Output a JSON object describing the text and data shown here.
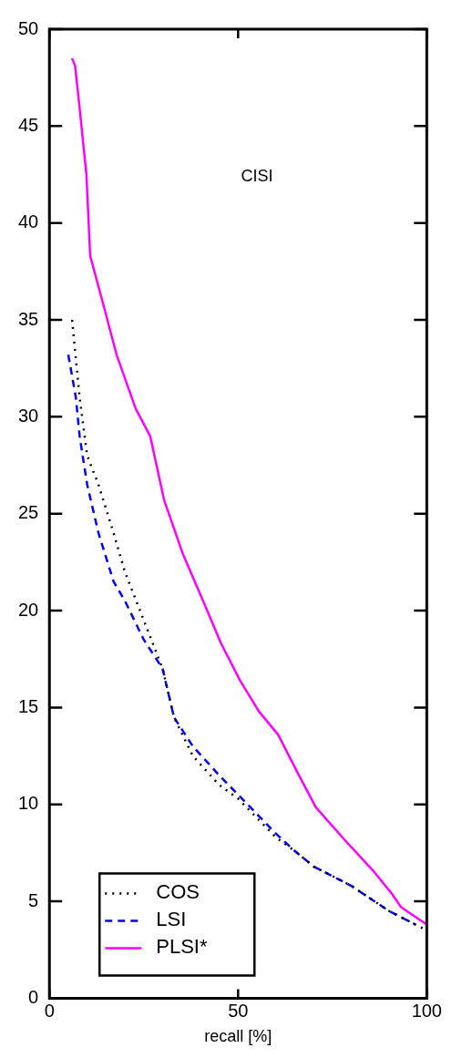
{
  "chart_data": {
    "type": "line",
    "title": "CISI",
    "xlabel": "recall [%]",
    "xlim": [
      0,
      100
    ],
    "xticks": [
      0,
      50,
      100
    ],
    "ylim": [
      0,
      50
    ],
    "yticks": [
      0,
      5,
      10,
      15,
      20,
      25,
      30,
      35,
      40,
      45,
      50
    ],
    "grid": false,
    "legend": "bottom left",
    "marker": "none",
    "series": [
      {
        "name": "COS",
        "color": "#000000",
        "line_style": "dotted",
        "x": [
          6,
          8,
          10,
          13,
          17,
          20,
          25,
          30,
          33,
          38,
          45,
          50,
          55,
          60,
          65,
          70,
          80,
          90,
          100
        ],
        "values": [
          35,
          31,
          28,
          26.5,
          24,
          22,
          19.5,
          17,
          14.5,
          12.5,
          11,
          10.3,
          9.3,
          8.3,
          7.6,
          6.8,
          5.8,
          4.5,
          3.5
        ]
      },
      {
        "name": "LSI",
        "color": "#0000ff",
        "line_style": "dashed",
        "x": [
          5,
          7,
          8,
          10,
          13,
          17,
          20,
          25,
          30,
          33,
          38,
          45,
          50,
          55,
          60,
          65,
          70,
          80,
          90,
          97
        ],
        "values": [
          33.2,
          31,
          29,
          26.5,
          24,
          21.5,
          20.5,
          18.5,
          17,
          14.5,
          13,
          11.5,
          10.5,
          9.5,
          8.5,
          7.6,
          6.8,
          5.8,
          4.5,
          3.8
        ]
      },
      {
        "name": "PLSI*",
        "color": "#ff00ff",
        "line_style": "solid",
        "x": [
          6,
          6.8,
          7.8,
          9.8,
          10.8,
          14,
          17.8,
          22.9,
          26.7,
          30.4,
          35.4,
          40.5,
          45.5,
          50.5,
          55.5,
          60.6,
          65.6,
          70.6,
          78.1,
          85.7,
          90.7,
          93.2,
          100
        ],
        "values": [
          48.5,
          48.1,
          46.3,
          42.5,
          38.3,
          36,
          33.2,
          30.4,
          29,
          25.7,
          22.9,
          20.6,
          18.3,
          16.4,
          14.8,
          13.6,
          11.7,
          9.85,
          8.2,
          6.6,
          5.4,
          4.7,
          3.8
        ]
      }
    ]
  }
}
